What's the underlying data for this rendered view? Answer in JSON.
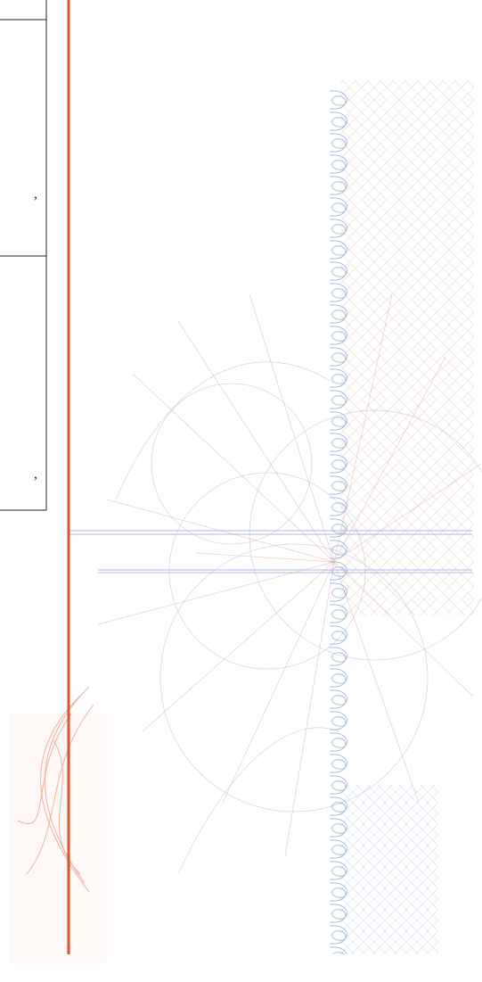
{
  "panels": [
    {
      "text": ","
    },
    {
      "text": ","
    }
  ]
}
